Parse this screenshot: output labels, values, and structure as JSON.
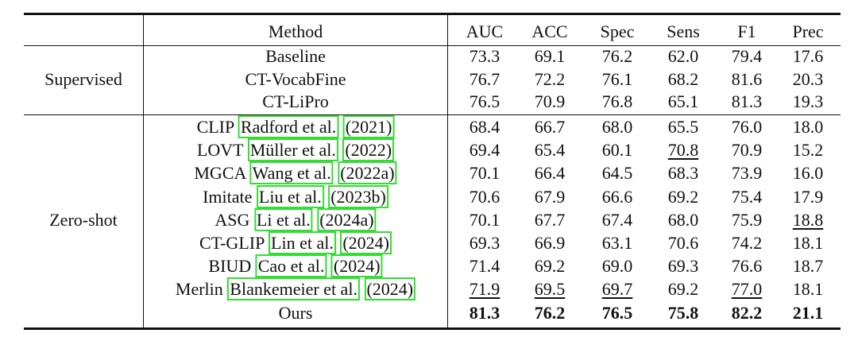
{
  "header": {
    "method": "Method",
    "metrics": [
      "AUC",
      "ACC",
      "Spec",
      "Sens",
      "F1",
      "Prec"
    ]
  },
  "groups": [
    {
      "name": "Supervised",
      "rows": [
        {
          "method": "Baseline",
          "values": [
            "73.3",
            "69.1",
            "76.2",
            "62.0",
            "79.4",
            "17.6"
          ]
        },
        {
          "method": "CT-VocabFine",
          "values": [
            "76.7",
            "72.2",
            "76.1",
            "68.2",
            "81.6",
            "20.3"
          ]
        },
        {
          "method": "CT-LiPro",
          "values": [
            "76.5",
            "70.9",
            "76.8",
            "65.1",
            "81.3",
            "19.3"
          ]
        }
      ]
    },
    {
      "name": "Zero-shot",
      "rows": [
        {
          "method": "CLIP",
          "cite_author": "Radford et al.",
          "cite_year": "(2021)",
          "values": [
            "68.4",
            "66.7",
            "68.0",
            "65.5",
            "76.0",
            "18.0"
          ]
        },
        {
          "method": "LOVT",
          "cite_author": "Müller et al.",
          "cite_year": "(2022)",
          "values": [
            "69.4",
            "65.4",
            "60.1",
            "70.8",
            "70.9",
            "15.2"
          ]
        },
        {
          "method": "MGCA",
          "cite_author": "Wang et al.",
          "cite_year": "(2022a)",
          "values": [
            "70.1",
            "66.4",
            "64.5",
            "68.3",
            "73.9",
            "16.0"
          ]
        },
        {
          "method": "Imitate",
          "cite_author": "Liu et al.",
          "cite_year": "(2023b)",
          "values": [
            "70.6",
            "67.9",
            "66.6",
            "69.2",
            "75.4",
            "17.9"
          ]
        },
        {
          "method": "ASG",
          "cite_author": "Li et al.",
          "cite_year": "(2024a)",
          "values": [
            "70.1",
            "67.7",
            "67.4",
            "68.0",
            "75.9",
            "18.8"
          ]
        },
        {
          "method": "CT-GLIP",
          "cite_author": "Lin et al.",
          "cite_year": "(2024)",
          "values": [
            "69.3",
            "66.9",
            "63.1",
            "70.6",
            "74.2",
            "18.1"
          ]
        },
        {
          "method": "BIUD",
          "cite_author": "Cao et al.",
          "cite_year": "(2024)",
          "values": [
            "71.4",
            "69.2",
            "69.0",
            "69.3",
            "76.6",
            "18.7"
          ]
        },
        {
          "method": "Merlin",
          "cite_author": "Blankemeier et al.",
          "cite_year": "(2024)",
          "values": [
            "71.9",
            "69.5",
            "69.7",
            "69.2",
            "77.0",
            "18.1"
          ]
        },
        {
          "method": "Ours",
          "values": [
            "81.3",
            "76.2",
            "76.5",
            "75.8",
            "82.2",
            "21.1"
          ]
        }
      ]
    }
  ]
}
